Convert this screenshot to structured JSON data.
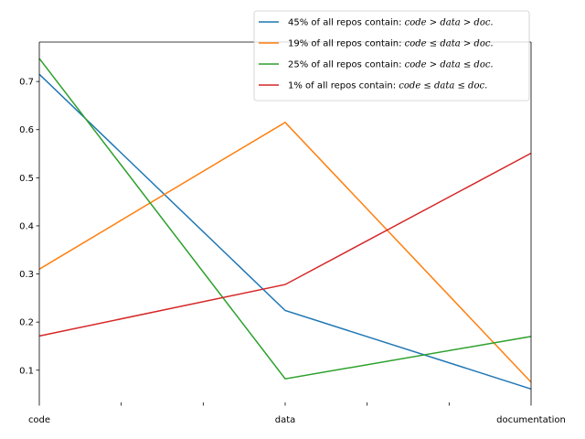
{
  "chart_data": {
    "type": "line",
    "title": "",
    "xlabel": "",
    "ylabel": "",
    "categories": [
      "code",
      "data",
      "documentation"
    ],
    "x_minor_ticks_between": 3,
    "ylim": [
      0.033,
      0.782
    ],
    "yticks": [
      0.1,
      0.2,
      0.3,
      0.4,
      0.5,
      0.6,
      0.7
    ],
    "ytick_labels": [
      "0.1",
      "0.2",
      "0.3",
      "0.4",
      "0.5",
      "0.6",
      "0.7"
    ],
    "grid": false,
    "legend_position": "upper-right, above plot area",
    "series": [
      {
        "name": "45% of all repos contain: code > data > doc.",
        "prefix": "45% of all repos contain: ",
        "formula": "code > data > doc.",
        "color": "#1f77b4",
        "values": [
          0.715,
          0.224,
          0.061
        ]
      },
      {
        "name": "19% of all repos contain: code ≤ data > doc.",
        "prefix": "19% of all repos contain: ",
        "formula": "code ≤ data > doc.",
        "color": "#ff7f0e",
        "values": [
          0.31,
          0.615,
          0.075
        ]
      },
      {
        "name": "25% of all repos contain: code > data ≤ doc.",
        "prefix": "25% of all repos contain: ",
        "formula": "code > data ≤ doc.",
        "color": "#2ca02c",
        "values": [
          0.748,
          0.082,
          0.17
        ]
      },
      {
        "name": "1% of all repos contain: code ≤ data ≤ doc.",
        "prefix": "1% of all repos contain: ",
        "formula": "code ≤ data ≤ doc.",
        "color": "#d62728",
        "values": [
          0.171,
          0.278,
          0.551
        ]
      }
    ]
  }
}
